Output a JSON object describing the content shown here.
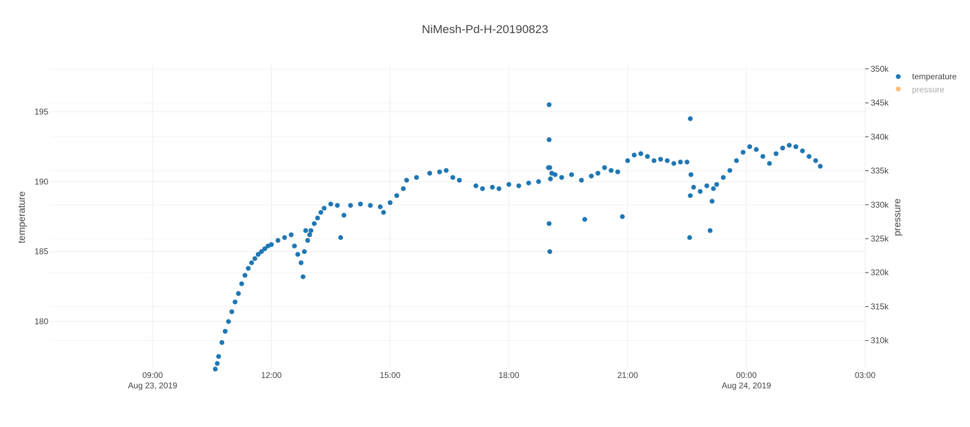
{
  "chart_data": {
    "type": "scatter",
    "title": "NiMesh-Pd-H-20190823",
    "ylabel": "temperature",
    "y2label": "pressure",
    "ylim": [
      176.7,
      198.3
    ],
    "y2lim": [
      306.0,
      350.5
    ],
    "xlim": [
      "2019-08-23 06:25",
      "2019-08-24 03:00"
    ],
    "grid": true,
    "legend_position": "top-right",
    "colors": {
      "temperature": "#1f77b4",
      "pressure": "#ffbb78"
    },
    "x_ticks": [
      {
        "value": "2019-08-23 09:00",
        "line1": "09:00",
        "line2": "Aug 23, 2019"
      },
      {
        "value": "2019-08-23 12:00",
        "line1": "12:00",
        "line2": ""
      },
      {
        "value": "2019-08-23 15:00",
        "line1": "15:00",
        "line2": ""
      },
      {
        "value": "2019-08-23 18:00",
        "line1": "18:00",
        "line2": ""
      },
      {
        "value": "2019-08-23 21:00",
        "line1": "21:00",
        "line2": ""
      },
      {
        "value": "2019-08-24 00:00",
        "line1": "00:00",
        "line2": "Aug 24, 2019"
      },
      {
        "value": "2019-08-24 03:00",
        "line1": "03:00",
        "line2": ""
      }
    ],
    "y_ticks": [
      180,
      185,
      190,
      195
    ],
    "y2_ticks": [
      {
        "value": 310,
        "label": "310k"
      },
      {
        "value": 315,
        "label": "315k"
      },
      {
        "value": 320,
        "label": "320k"
      },
      {
        "value": 325,
        "label": "325k"
      },
      {
        "value": 330,
        "label": "330k"
      },
      {
        "value": 335,
        "label": "335k"
      },
      {
        "value": 340,
        "label": "340k"
      },
      {
        "value": 345,
        "label": "345k"
      },
      {
        "value": 350,
        "label": "350k"
      }
    ],
    "series": [
      {
        "name": "temperature",
        "visible": true,
        "x": [
          "2019-08-23 10:35",
          "2019-08-23 10:38",
          "2019-08-23 10:40",
          "2019-08-23 10:45",
          "2019-08-23 10:50",
          "2019-08-23 10:55",
          "2019-08-23 11:00",
          "2019-08-23 11:05",
          "2019-08-23 11:10",
          "2019-08-23 11:15",
          "2019-08-23 11:20",
          "2019-08-23 11:25",
          "2019-08-23 11:30",
          "2019-08-23 11:35",
          "2019-08-23 11:40",
          "2019-08-23 11:45",
          "2019-08-23 11:50",
          "2019-08-23 11:55",
          "2019-08-23 12:00",
          "2019-08-23 12:10",
          "2019-08-23 12:20",
          "2019-08-23 12:30",
          "2019-08-23 12:35",
          "2019-08-23 12:40",
          "2019-08-23 12:45",
          "2019-08-23 12:48",
          "2019-08-23 12:50",
          "2019-08-23 12:52",
          "2019-08-23 12:55",
          "2019-08-23 12:58",
          "2019-08-23 13:00",
          "2019-08-23 13:05",
          "2019-08-23 13:10",
          "2019-08-23 13:15",
          "2019-08-23 13:20",
          "2019-08-23 13:30",
          "2019-08-23 13:40",
          "2019-08-23 13:45",
          "2019-08-23 13:50",
          "2019-08-23 14:00",
          "2019-08-23 14:15",
          "2019-08-23 14:30",
          "2019-08-23 14:45",
          "2019-08-23 14:50",
          "2019-08-23 15:00",
          "2019-08-23 15:10",
          "2019-08-23 15:20",
          "2019-08-23 15:25",
          "2019-08-23 15:40",
          "2019-08-23 16:00",
          "2019-08-23 16:15",
          "2019-08-23 16:25",
          "2019-08-23 16:35",
          "2019-08-23 16:45",
          "2019-08-23 17:10",
          "2019-08-23 17:20",
          "2019-08-23 17:35",
          "2019-08-23 17:45",
          "2019-08-23 18:00",
          "2019-08-23 18:15",
          "2019-08-23 18:30",
          "2019-08-23 18:45",
          "2019-08-23 19:00",
          "2019-08-23 19:01",
          "2019-08-23 19:01",
          "2019-08-23 19:01",
          "2019-08-23 19:02",
          "2019-08-23 19:02",
          "2019-08-23 19:03",
          "2019-08-23 19:05",
          "2019-08-23 19:10",
          "2019-08-23 19:20",
          "2019-08-23 19:35",
          "2019-08-23 19:50",
          "2019-08-23 19:55",
          "2019-08-23 20:05",
          "2019-08-23 20:15",
          "2019-08-23 20:25",
          "2019-08-23 20:35",
          "2019-08-23 20:45",
          "2019-08-23 20:52",
          "2019-08-23 21:00",
          "2019-08-23 21:10",
          "2019-08-23 21:20",
          "2019-08-23 21:30",
          "2019-08-23 21:40",
          "2019-08-23 21:50",
          "2019-08-23 22:00",
          "2019-08-23 22:10",
          "2019-08-23 22:20",
          "2019-08-23 22:30",
          "2019-08-23 22:34",
          "2019-08-23 22:35",
          "2019-08-23 22:35",
          "2019-08-23 22:36",
          "2019-08-23 22:40",
          "2019-08-23 22:50",
          "2019-08-23 23:00",
          "2019-08-23 23:05",
          "2019-08-23 23:08",
          "2019-08-23 23:10",
          "2019-08-23 23:15",
          "2019-08-23 23:25",
          "2019-08-23 23:35",
          "2019-08-23 23:45",
          "2019-08-23 23:55",
          "2019-08-24 00:05",
          "2019-08-24 00:15",
          "2019-08-24 00:25",
          "2019-08-24 00:35",
          "2019-08-24 00:45",
          "2019-08-24 00:55",
          "2019-08-24 01:05",
          "2019-08-24 01:15",
          "2019-08-24 01:25",
          "2019-08-24 01:35",
          "2019-08-24 01:45",
          "2019-08-24 01:52"
        ],
        "y": [
          176.6,
          177.0,
          177.5,
          178.5,
          179.3,
          180.0,
          180.7,
          181.4,
          182.0,
          182.7,
          183.3,
          183.8,
          184.2,
          184.5,
          184.8,
          185.0,
          185.2,
          185.4,
          185.5,
          185.8,
          186.0,
          186.2,
          185.4,
          184.8,
          184.2,
          183.2,
          185.0,
          186.5,
          185.8,
          186.2,
          186.5,
          187.0,
          187.4,
          187.8,
          188.1,
          188.4,
          188.3,
          186.0,
          187.6,
          188.3,
          188.4,
          188.3,
          188.2,
          187.8,
          188.5,
          189.0,
          189.5,
          190.1,
          190.3,
          190.6,
          190.7,
          190.8,
          190.3,
          190.1,
          189.7,
          189.5,
          189.6,
          189.5,
          189.8,
          189.7,
          189.9,
          190.0,
          191.0,
          195.5,
          193.0,
          187.0,
          185.0,
          191.0,
          190.2,
          190.6,
          190.5,
          190.3,
          190.5,
          190.1,
          187.3,
          190.4,
          190.6,
          191.0,
          190.8,
          190.7,
          187.5,
          191.5,
          191.9,
          192.0,
          191.8,
          191.5,
          191.6,
          191.5,
          191.3,
          191.4,
          191.4,
          186.0,
          194.5,
          189.0,
          190.5,
          189.6,
          189.3,
          189.7,
          186.5,
          188.6,
          189.5,
          189.8,
          190.3,
          190.8,
          191.5,
          192.1,
          192.5,
          192.3,
          191.8,
          191.3,
          192.0,
          192.4,
          192.6,
          192.5,
          192.2,
          191.8,
          191.5,
          191.1
        ]
      },
      {
        "name": "pressure",
        "visible": false,
        "x": [],
        "y": []
      }
    ]
  }
}
